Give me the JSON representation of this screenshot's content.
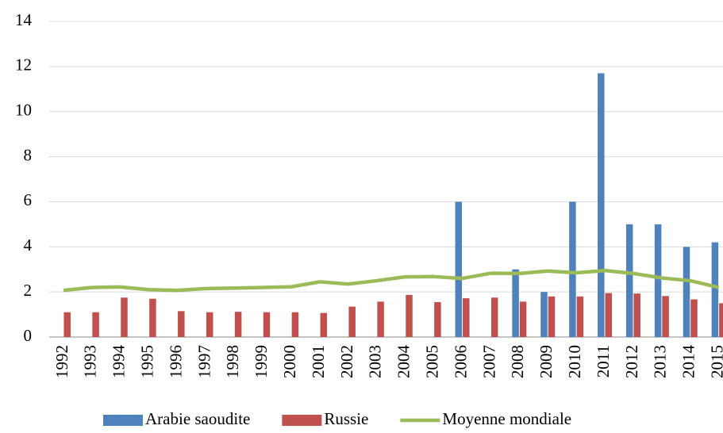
{
  "chart_data": {
    "type": "bar",
    "categories": [
      "1992",
      "1993",
      "1994",
      "1995",
      "1996",
      "1997",
      "1998",
      "1999",
      "2000",
      "2001",
      "2002",
      "2003",
      "2004",
      "2005",
      "2006",
      "2007",
      "2008",
      "2009",
      "2010",
      "2011",
      "2012",
      "2013",
      "2014",
      "2015"
    ],
    "series": [
      {
        "name": "Arabie saoudite",
        "color": "#4f81bd",
        "type": "bar",
        "values": [
          null,
          null,
          null,
          null,
          null,
          null,
          null,
          null,
          null,
          null,
          null,
          null,
          null,
          null,
          6,
          null,
          3,
          2,
          6,
          11.7,
          5,
          5,
          4,
          4.2
        ]
      },
      {
        "name": "Russie",
        "color": "#c0504d",
        "type": "bar",
        "values": [
          1.1,
          1.1,
          1.75,
          1.7,
          1.15,
          1.1,
          1.12,
          1.1,
          1.1,
          1.07,
          1.35,
          1.57,
          1.87,
          1.55,
          1.72,
          1.75,
          1.57,
          1.8,
          1.8,
          1.95,
          1.93,
          1.82,
          1.67,
          1.5
        ]
      },
      {
        "name": "Moyenne mondiale",
        "color": "#9bbb59",
        "type": "line",
        "values": [
          2.07,
          2.2,
          2.22,
          2.1,
          2.07,
          2.15,
          2.17,
          2.2,
          2.23,
          2.45,
          2.35,
          2.5,
          2.67,
          2.68,
          2.6,
          2.83,
          2.82,
          2.93,
          2.85,
          2.95,
          2.82,
          2.62,
          2.5,
          2.2
        ]
      }
    ],
    "ylim": [
      0,
      14
    ],
    "yticks": [
      0,
      2,
      4,
      6,
      8,
      10,
      12,
      14
    ],
    "grid": true,
    "legend": "bottom"
  }
}
